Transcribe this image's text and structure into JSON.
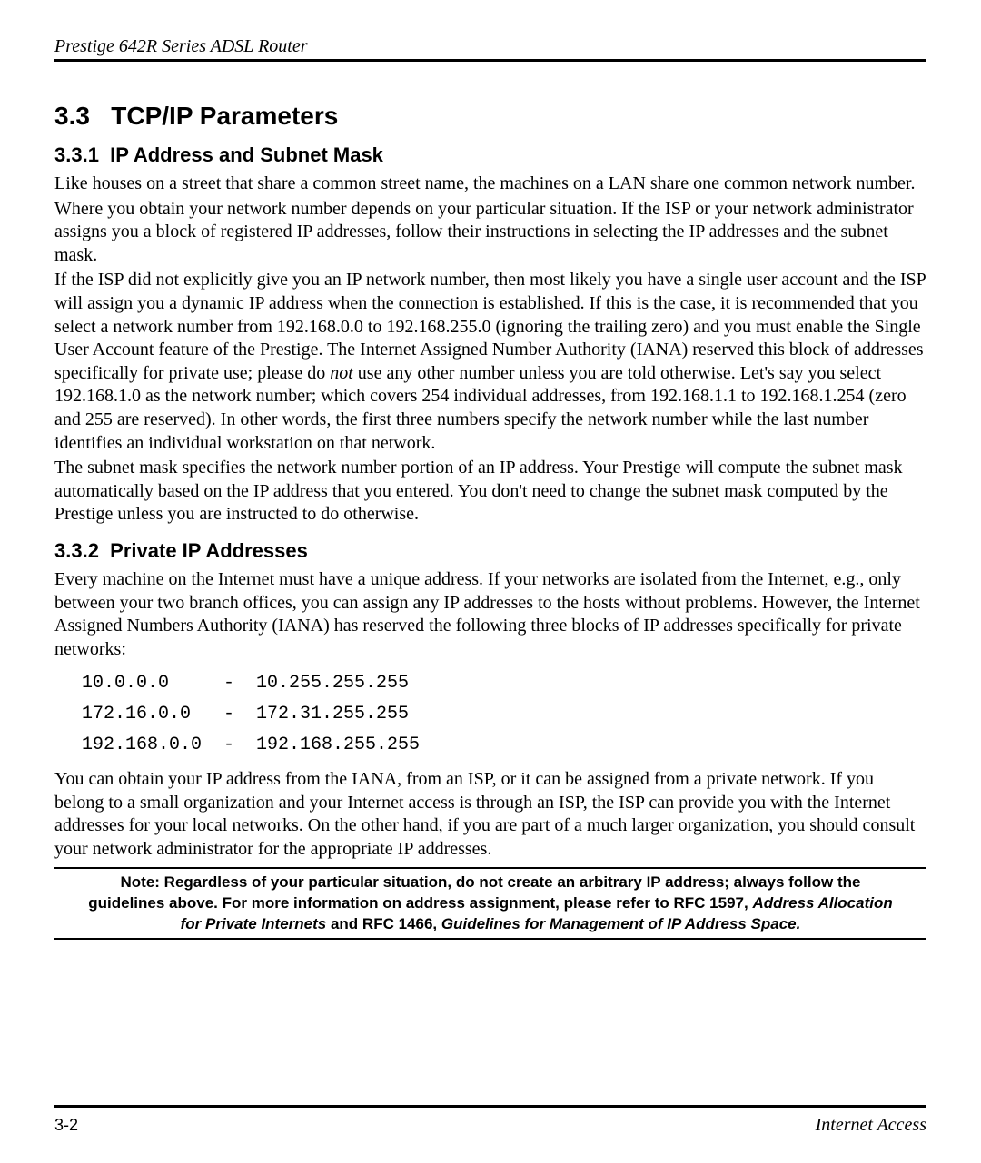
{
  "header": {
    "title": "Prestige 642R Series ADSL Router"
  },
  "section": {
    "number": "3.3",
    "title": "TCP/IP Parameters"
  },
  "sub1": {
    "number": "3.3.1",
    "title": "IP Address and Subnet Mask",
    "p1": "Like houses on a street that share a common street name, the machines on a LAN share one common network number.",
    "p2": "Where you obtain your network number depends on your particular situation.  If the ISP or your network administrator assigns you a block of registered IP addresses, follow their instructions in selecting the IP addresses and the subnet mask.",
    "p3a": "If the ISP did not explicitly give you an IP network number, then most likely you have a single user account and the ISP will assign you a dynamic IP address when the connection is established.  If this is the case, it is recommended that you select a network number from 192.168.0.0 to 192.168.255.0 (ignoring the trailing zero) and you must enable the Single User Account feature of the Prestige. The Internet Assigned Number Authority (IANA) reserved this block of addresses specifically for private use; please do ",
    "p3_em": "not",
    "p3b": " use any other number unless you are told otherwise.  Let's say you select 192.168.1.0 as the network number; which covers 254 individual addresses, from 192.168.1.1 to 192.168.1.254 (zero and 255 are reserved).  In other words, the first three numbers specify the network number while the last number identifies an individual workstation on that network.",
    "p4": "The subnet mask specifies the network number portion of an IP address.  Your Prestige will compute the subnet mask automatically based on the IP address that you entered.  You don't need to change the subnet mask computed by the Prestige unless you are instructed to do otherwise."
  },
  "sub2": {
    "number": "3.3.2",
    "title": "Private IP Addresses",
    "p1": "Every machine on the Internet must have a unique address. If your networks are isolated from the Internet, e.g., only between your two branch offices, you can assign any IP addresses to the hosts without problems. However, the Internet Assigned Numbers Authority (IANA) has reserved the following three blocks of IP addresses specifically for private networks:",
    "ranges": "10.0.0.0     -  10.255.255.255\n172.16.0.0   -  172.31.255.255\n192.168.0.0  -  192.168.255.255",
    "p2": "You can obtain your IP address from the IANA, from an ISP, or it can be assigned from a private network. If you belong to a small organization and your Internet access is through an ISP, the ISP can provide you with the Internet addresses for your local networks. On the other hand, if you are part of a much larger organization, you should consult your network administrator for the appropriate IP addresses."
  },
  "note": {
    "line1": "Note: Regardless of your particular situation, do not create an arbitrary IP address; always follow the guidelines above. For more information on address assignment, please refer to RFC 1597, ",
    "em1": "Address Allocation for Private Internets",
    "mid": " and RFC 1466, ",
    "em2": "Guidelines for Management of IP Address Space."
  },
  "footer": {
    "page_number": "3-2",
    "chapter": "Internet Access"
  }
}
